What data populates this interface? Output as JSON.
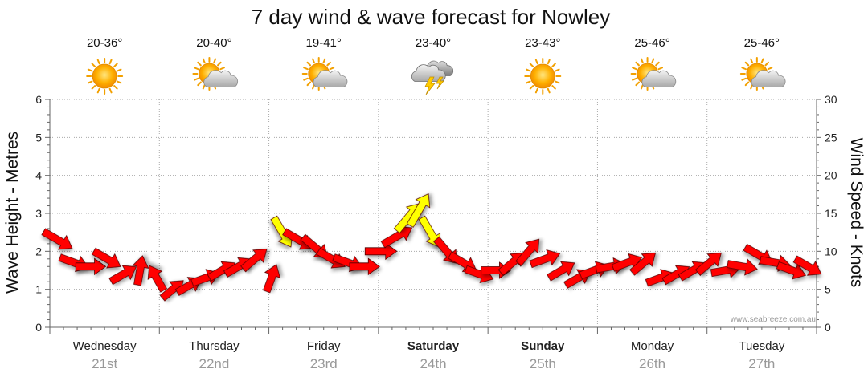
{
  "chart_data": {
    "type": "forecast",
    "title": "7 day wind & wave forecast for Nowley",
    "ylabel_left": "Wave Height - Metres",
    "ylabel_right": "Wind Speed - Knots",
    "ylim_left": [
      0,
      6
    ],
    "ylim_right": [
      0,
      30
    ],
    "yticks_left": [
      "0",
      "1",
      "2",
      "3",
      "4",
      "5",
      "6"
    ],
    "yticks_right": [
      "0",
      "5",
      "10",
      "15",
      "20",
      "25",
      "30"
    ],
    "credit": "www.seabreeze.com.au",
    "days": [
      {
        "name": "Wednesday",
        "date": "21st",
        "temp": "20-36°",
        "weather": "sunny",
        "bold": false
      },
      {
        "name": "Thursday",
        "date": "22nd",
        "temp": "20-40°",
        "weather": "partly-cloudy",
        "bold": false
      },
      {
        "name": "Friday",
        "date": "23rd",
        "temp": "19-41°",
        "weather": "partly-cloudy",
        "bold": false
      },
      {
        "name": "Saturday",
        "date": "24th",
        "temp": "23-40°",
        "weather": "thunderstorm",
        "bold": true
      },
      {
        "name": "Sunday",
        "date": "25th",
        "temp": "23-43°",
        "weather": "sunny",
        "bold": true
      },
      {
        "name": "Monday",
        "date": "26th",
        "temp": "25-46°",
        "weather": "partly-cloudy",
        "bold": false
      },
      {
        "name": "Tuesday",
        "date": "27th",
        "temp": "25-46°",
        "weather": "partly-cloudy",
        "bold": false
      }
    ],
    "wind_series": {
      "name": "Wind",
      "unit": "knots",
      "colors": {
        "strong": "#ff0000",
        "light": "#ffff00",
        "outline": "#550000"
      },
      "light_threshold": 12,
      "points": [
        {
          "t": 0.0,
          "speed": 11.5,
          "dir": 300
        },
        {
          "t": 0.15,
          "speed": 8.5,
          "dir": 290
        },
        {
          "t": 0.3,
          "speed": 8.0,
          "dir": 270
        },
        {
          "t": 0.45,
          "speed": 9.0,
          "dir": 300
        },
        {
          "t": 0.6,
          "speed": 7.0,
          "dir": 240
        },
        {
          "t": 0.75,
          "speed": 7.5,
          "dir": 190
        },
        {
          "t": 0.9,
          "speed": 6.5,
          "dir": 150
        },
        {
          "t": 1.05,
          "speed": 5.0,
          "dir": 230
        },
        {
          "t": 1.2,
          "speed": 5.5,
          "dir": 240
        },
        {
          "t": 1.35,
          "speed": 6.5,
          "dir": 250
        },
        {
          "t": 1.5,
          "speed": 7.5,
          "dir": 240
        },
        {
          "t": 1.65,
          "speed": 8.0,
          "dir": 240
        },
        {
          "t": 1.8,
          "speed": 9.0,
          "dir": 230
        },
        {
          "t": 1.95,
          "speed": 6.5,
          "dir": 200
        },
        {
          "t": 2.05,
          "speed": 12.5,
          "dir": 330
        },
        {
          "t": 2.2,
          "speed": 11.5,
          "dir": 300
        },
        {
          "t": 2.35,
          "speed": 10.5,
          "dir": 310
        },
        {
          "t": 2.5,
          "speed": 9.0,
          "dir": 300
        },
        {
          "t": 2.65,
          "speed": 8.5,
          "dir": 290
        },
        {
          "t": 2.8,
          "speed": 8.0,
          "dir": 270
        },
        {
          "t": 2.95,
          "speed": 10.0,
          "dir": 270
        },
        {
          "t": 3.1,
          "speed": 12.0,
          "dir": 240
        },
        {
          "t": 3.2,
          "speed": 14.5,
          "dir": 220
        },
        {
          "t": 3.3,
          "speed": 15.5,
          "dir": 210
        },
        {
          "t": 3.4,
          "speed": 12.5,
          "dir": 330
        },
        {
          "t": 3.55,
          "speed": 10.0,
          "dir": 320
        },
        {
          "t": 3.7,
          "speed": 8.5,
          "dir": 300
        },
        {
          "t": 3.85,
          "speed": 7.0,
          "dir": 290
        },
        {
          "t": 4.0,
          "speed": 7.5,
          "dir": 270
        },
        {
          "t": 4.15,
          "speed": 8.5,
          "dir": 230
        },
        {
          "t": 4.3,
          "speed": 10.0,
          "dir": 220
        },
        {
          "t": 4.45,
          "speed": 9.0,
          "dir": 250
        },
        {
          "t": 4.6,
          "speed": 7.5,
          "dir": 240
        },
        {
          "t": 4.75,
          "speed": 6.5,
          "dir": 240
        },
        {
          "t": 4.9,
          "speed": 7.5,
          "dir": 250
        },
        {
          "t": 5.05,
          "speed": 8.0,
          "dir": 260
        },
        {
          "t": 5.2,
          "speed": 8.5,
          "dir": 250
        },
        {
          "t": 5.35,
          "speed": 8.5,
          "dir": 230
        },
        {
          "t": 5.5,
          "speed": 6.5,
          "dir": 250
        },
        {
          "t": 5.65,
          "speed": 7.0,
          "dir": 240
        },
        {
          "t": 5.8,
          "speed": 7.5,
          "dir": 240
        },
        {
          "t": 5.95,
          "speed": 8.5,
          "dir": 230
        },
        {
          "t": 6.1,
          "speed": 7.5,
          "dir": 260
        },
        {
          "t": 6.25,
          "speed": 8.0,
          "dir": 280
        },
        {
          "t": 6.4,
          "speed": 9.5,
          "dir": 300
        },
        {
          "t": 6.55,
          "speed": 8.5,
          "dir": 280
        },
        {
          "t": 6.7,
          "speed": 7.5,
          "dir": 290
        },
        {
          "t": 6.85,
          "speed": 8.0,
          "dir": 300
        }
      ]
    }
  }
}
